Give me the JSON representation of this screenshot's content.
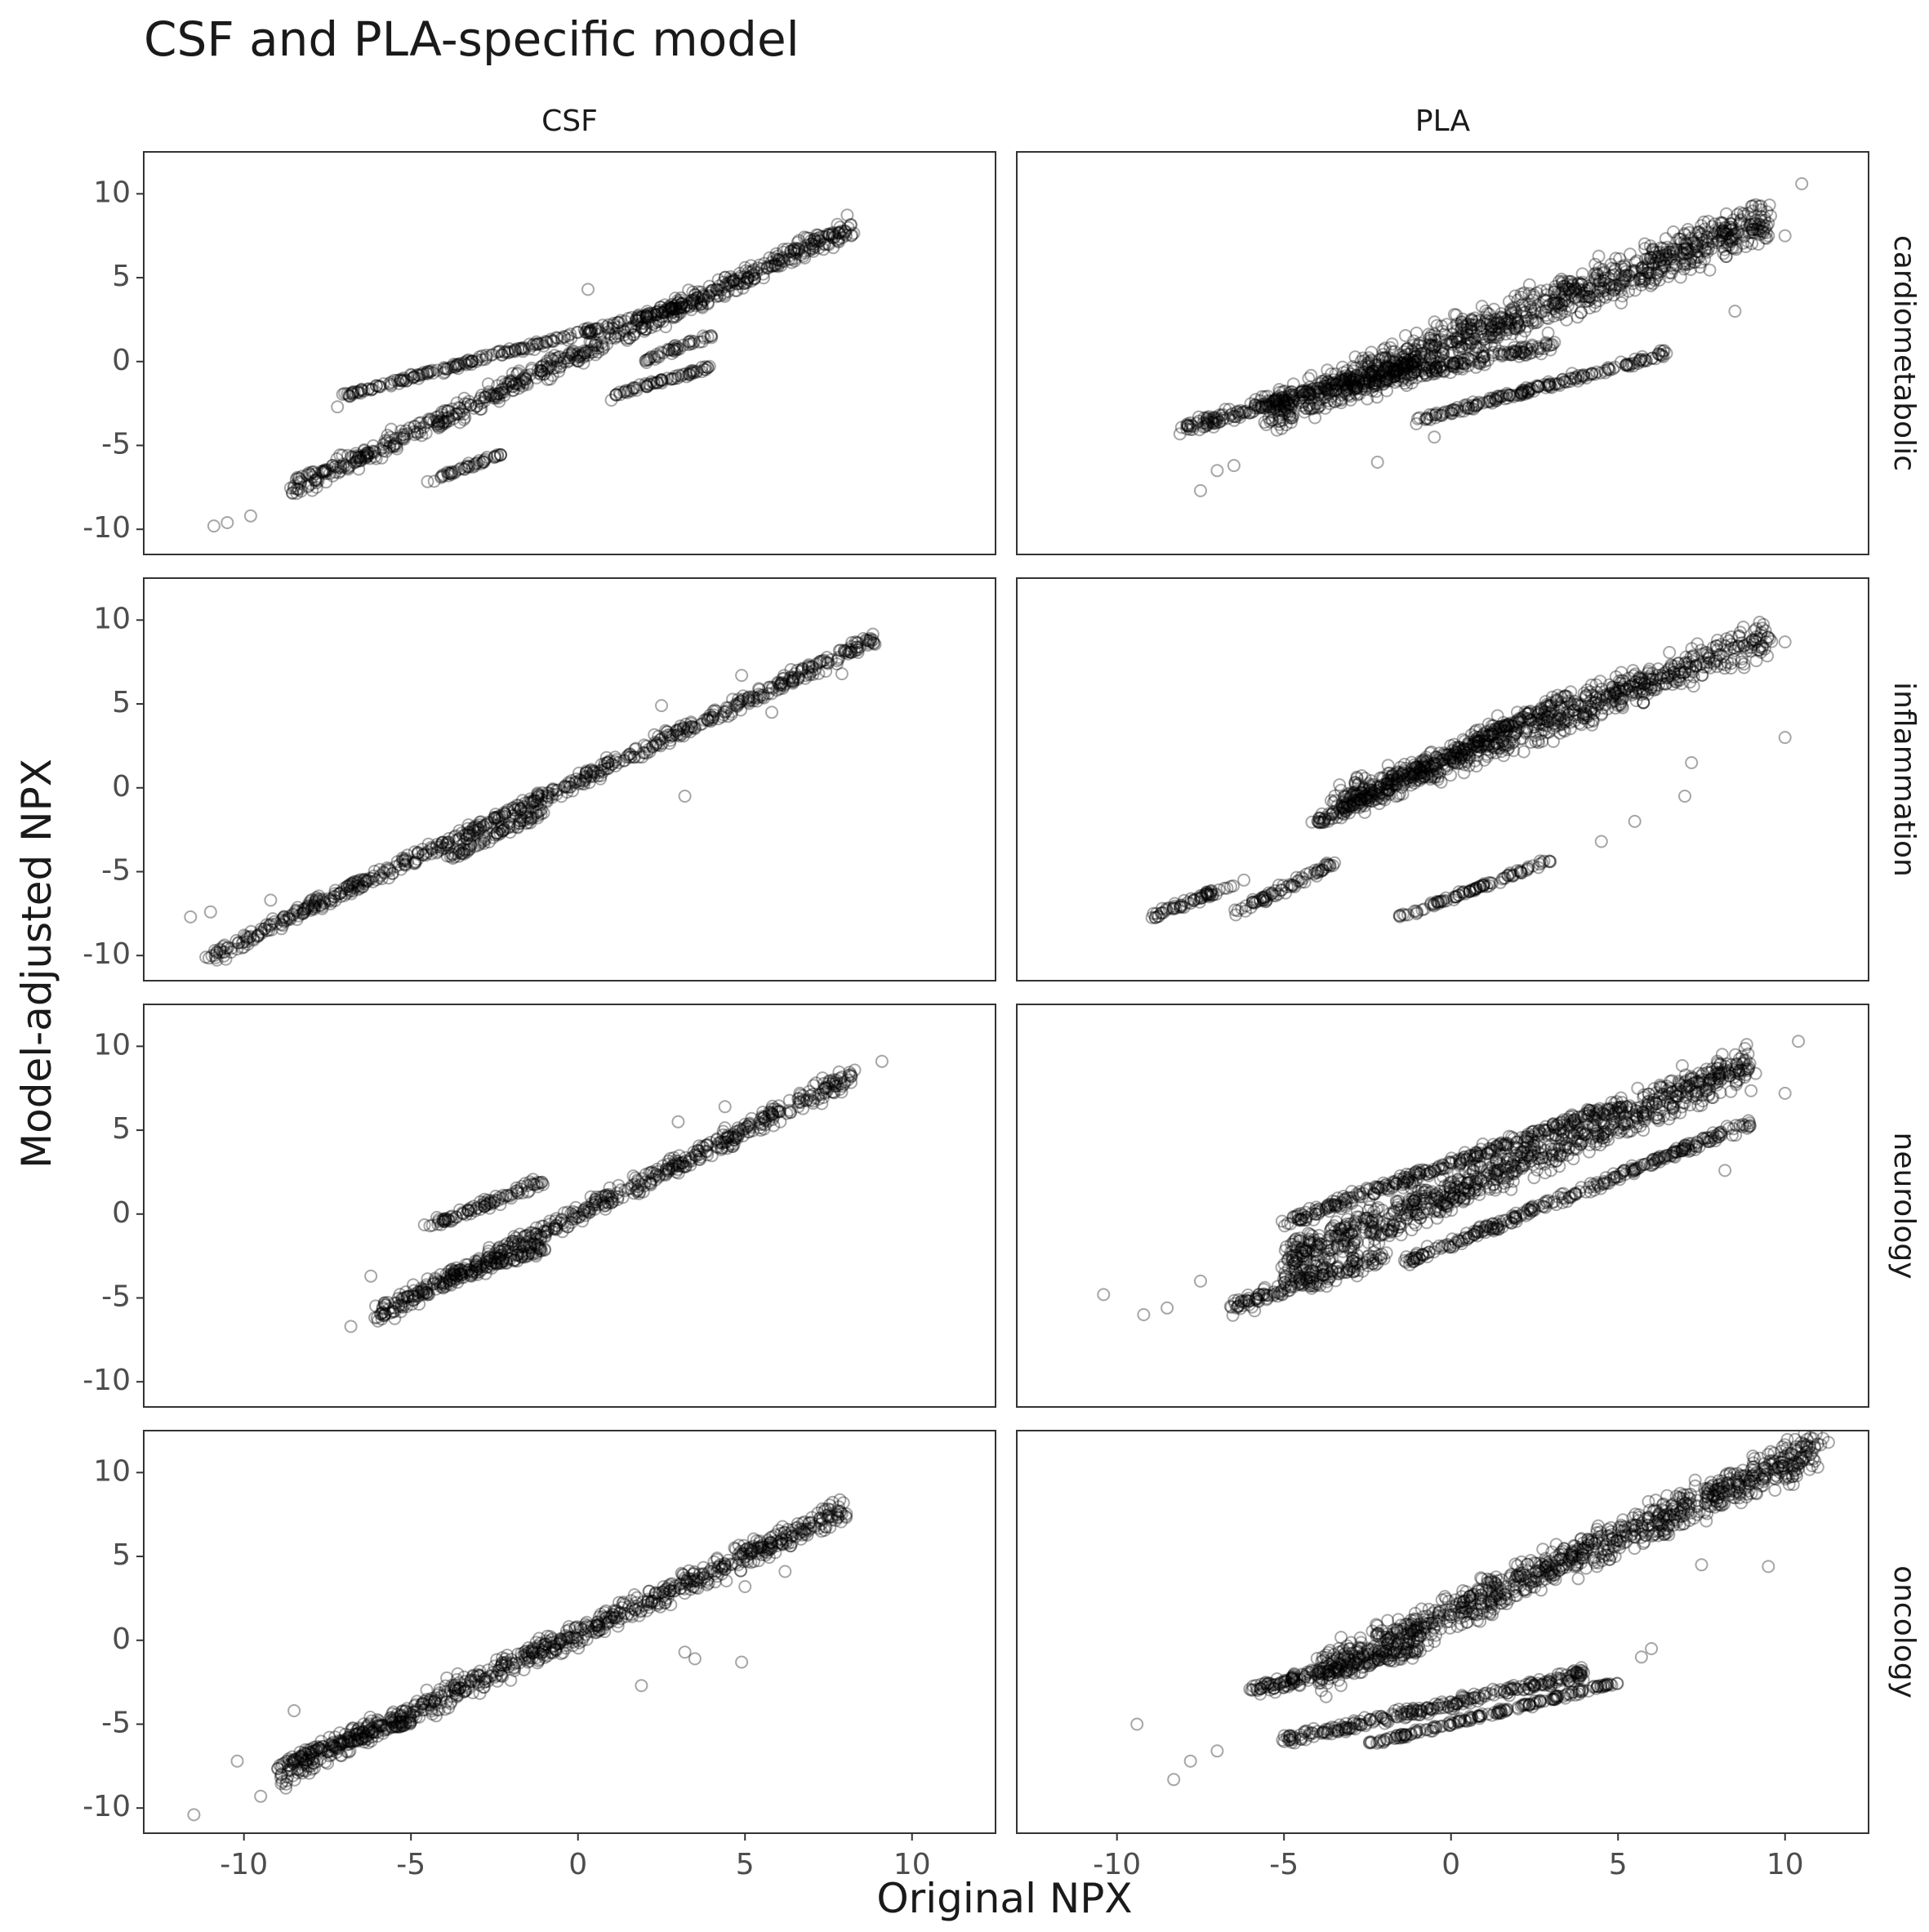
{
  "chart_data": {
    "type": "scatter",
    "title": "CSF and PLA-specific model",
    "xlabel": "Original NPX",
    "ylabel": "Model-adjusted NPX",
    "columns": [
      "CSF",
      "PLA"
    ],
    "rows": [
      "cardiometabolic",
      "inflammation",
      "neurology",
      "oncology"
    ],
    "xlim": [
      -13,
      12.5
    ],
    "ylim": [
      -11.5,
      12.5
    ],
    "xticks": [
      -10,
      -5,
      0,
      5,
      10
    ],
    "yticks": [
      -10,
      -5,
      0,
      5,
      10
    ],
    "xtick_labels": [
      "-10",
      "-5",
      "0",
      "5",
      "10"
    ],
    "ytick_labels": [
      "-10",
      "-5",
      "0",
      "5",
      "10"
    ],
    "grid": false,
    "marker": "open-circle",
    "point_color": "#000000",
    "point_opacity": 0.35,
    "panels": [
      {
        "column": "CSF",
        "row": "cardiometabolic",
        "segments": [
          {
            "x": [
              -8.5,
              8.2
            ],
            "y": [
              -7.5,
              8.0
            ],
            "spread": 0.9
          },
          {
            "x": [
              -7.0,
              3.5
            ],
            "y": [
              -2.0,
              3.5
            ],
            "spread": 0.25
          },
          {
            "x": [
              2.0,
              4.0
            ],
            "y": [
              0.0,
              1.6
            ],
            "spread": 0.2
          },
          {
            "x": [
              1.0,
              4.0
            ],
            "y": [
              -2.0,
              -0.3
            ],
            "spread": 0.2
          },
          {
            "x": [
              -4.5,
              -2.3
            ],
            "y": [
              -7.2,
              -5.5
            ],
            "spread": 0.15
          }
        ],
        "outliers": [
          {
            "x": -10.9,
            "y": -9.8
          },
          {
            "x": -10.5,
            "y": -9.6
          },
          {
            "x": -9.8,
            "y": -9.2
          },
          {
            "x": -7.2,
            "y": -2.7
          },
          {
            "x": 0.3,
            "y": 4.3
          },
          {
            "x": 1.0,
            "y": -2.3
          }
        ]
      },
      {
        "column": "PLA",
        "row": "cardiometabolic",
        "segments": [
          {
            "x": [
              -5.5,
              9.5
            ],
            "y": [
              -3.0,
              8.5
            ],
            "spread": 2.0
          },
          {
            "x": [
              -8.0,
              -1.0
            ],
            "y": [
              -4.0,
              0.0
            ],
            "spread": 0.6
          },
          {
            "x": [
              -1.0,
              6.5
            ],
            "y": [
              -3.5,
              0.5
            ],
            "spread": 0.3
          },
          {
            "x": [
              -3.0,
              3.0
            ],
            "y": [
              -1.5,
              1.0
            ],
            "spread": 0.6
          }
        ],
        "outliers": [
          {
            "x": -7.5,
            "y": -7.7
          },
          {
            "x": -7.0,
            "y": -6.5
          },
          {
            "x": -6.5,
            "y": -6.2
          },
          {
            "x": -2.2,
            "y": -6.0
          },
          {
            "x": -0.5,
            "y": -4.5
          },
          {
            "x": 10.5,
            "y": 10.6
          },
          {
            "x": 10.0,
            "y": 7.5
          },
          {
            "x": 9.2,
            "y": 7.0
          },
          {
            "x": 8.5,
            "y": 3.0
          }
        ]
      },
      {
        "column": "CSF",
        "row": "inflammation",
        "segments": [
          {
            "x": [
              -11.0,
              9.0
            ],
            "y": [
              -10.0,
              9.0
            ],
            "spread": 0.6
          },
          {
            "x": [
              -4.0,
              -1.0
            ],
            "y": [
              -4.3,
              -1.3
            ],
            "spread": 0.4
          }
        ],
        "outliers": [
          {
            "x": -11.6,
            "y": -7.7
          },
          {
            "x": -11.0,
            "y": -7.4
          },
          {
            "x": -10.0,
            "y": -9.5
          },
          {
            "x": -9.2,
            "y": -6.7
          },
          {
            "x": 3.2,
            "y": -0.5
          },
          {
            "x": 2.5,
            "y": 4.9
          },
          {
            "x": 4.9,
            "y": 6.7
          },
          {
            "x": 5.8,
            "y": 4.5
          },
          {
            "x": 7.9,
            "y": 6.8
          }
        ]
      },
      {
        "column": "PLA",
        "row": "inflammation",
        "segments": [
          {
            "x": [
              -3.5,
              9.5
            ],
            "y": [
              -1.0,
              9.0
            ],
            "spread": 1.6
          },
          {
            "x": [
              -9.0,
              -6.5
            ],
            "y": [
              -7.7,
              -5.8
            ],
            "spread": 0.3
          },
          {
            "x": [
              -6.5,
              -3.5
            ],
            "y": [
              -7.5,
              -4.5
            ],
            "spread": 0.3
          },
          {
            "x": [
              -1.5,
              3.0
            ],
            "y": [
              -7.7,
              -4.3
            ],
            "spread": 0.15
          },
          {
            "x": [
              -4.0,
              3.5
            ],
            "y": [
              -2.0,
              5.5
            ],
            "spread": 0.5
          }
        ],
        "outliers": [
          {
            "x": -6.2,
            "y": -5.5
          },
          {
            "x": -3.8,
            "y": -2.0
          },
          {
            "x": 4.5,
            "y": -3.2
          },
          {
            "x": 5.5,
            "y": -2.0
          },
          {
            "x": 10.0,
            "y": 3.0
          },
          {
            "x": 10.0,
            "y": 8.7
          },
          {
            "x": 7.0,
            "y": -0.5
          },
          {
            "x": 7.2,
            "y": 1.5
          }
        ]
      },
      {
        "column": "CSF",
        "row": "neurology",
        "segments": [
          {
            "x": [
              -6.0,
              8.2
            ],
            "y": [
              -6.0,
              8.2
            ],
            "spread": 0.9
          },
          {
            "x": [
              -4.5,
              -1.0
            ],
            "y": [
              -0.8,
              2.0
            ],
            "spread": 0.4
          },
          {
            "x": [
              -4.0,
              -1.0
            ],
            "y": [
              -4.0,
              -2.0
            ],
            "spread": 0.5
          }
        ],
        "outliers": [
          {
            "x": -6.8,
            "y": -6.7
          },
          {
            "x": 9.1,
            "y": 9.1
          },
          {
            "x": 4.4,
            "y": 6.4
          },
          {
            "x": 3.0,
            "y": 5.5
          },
          {
            "x": -6.2,
            "y": -3.7
          }
        ]
      },
      {
        "column": "PLA",
        "row": "neurology",
        "segments": [
          {
            "x": [
              -5.0,
              9.0
            ],
            "y": [
              -3.0,
              9.0
            ],
            "spread": 1.8
          },
          {
            "x": [
              -5.0,
              5.0
            ],
            "y": [
              -0.5,
              6.5
            ],
            "spread": 0.5
          },
          {
            "x": [
              -1.5,
              9.0
            ],
            "y": [
              -3.0,
              5.5
            ],
            "spread": 0.4
          },
          {
            "x": [
              -6.5,
              -2.0
            ],
            "y": [
              -5.5,
              -2.5
            ],
            "spread": 0.8
          }
        ],
        "outliers": [
          {
            "x": -10.4,
            "y": -4.8
          },
          {
            "x": -9.2,
            "y": -6.0
          },
          {
            "x": -8.5,
            "y": -5.6
          },
          {
            "x": -7.5,
            "y": -4.0
          },
          {
            "x": 10.4,
            "y": 10.3
          },
          {
            "x": 10.0,
            "y": 7.2
          },
          {
            "x": 8.2,
            "y": 2.6
          },
          {
            "x": 6.5,
            "y": 3.5
          }
        ]
      },
      {
        "column": "CSF",
        "row": "oncology",
        "segments": [
          {
            "x": [
              -9.0,
              8.0
            ],
            "y": [
              -8.0,
              7.8
            ],
            "spread": 1.1
          },
          {
            "x": [
              -8.5,
              -5.0
            ],
            "y": [
              -7.0,
              -4.8
            ],
            "spread": 0.4
          }
        ],
        "outliers": [
          {
            "x": -11.5,
            "y": -10.4
          },
          {
            "x": -10.2,
            "y": -7.2
          },
          {
            "x": -9.5,
            "y": -9.3
          },
          {
            "x": -8.5,
            "y": -4.2
          },
          {
            "x": 1.9,
            "y": -2.7
          },
          {
            "x": 3.2,
            "y": -0.7
          },
          {
            "x": 3.5,
            "y": -1.1
          },
          {
            "x": 4.9,
            "y": -1.3
          },
          {
            "x": 5.0,
            "y": 3.2
          },
          {
            "x": 6.2,
            "y": 4.1
          }
        ]
      },
      {
        "column": "PLA",
        "row": "oncology",
        "segments": [
          {
            "x": [
              -4.0,
              11.0
            ],
            "y": [
              -2.0,
              11.5
            ],
            "spread": 1.8
          },
          {
            "x": [
              -5.0,
              4.0
            ],
            "y": [
              -6.0,
              -2.0
            ],
            "spread": 0.5
          },
          {
            "x": [
              -2.5,
              5.0
            ],
            "y": [
              -6.2,
              -2.5
            ],
            "spread": 0.2
          },
          {
            "x": [
              -6.0,
              -1.0
            ],
            "y": [
              -3.0,
              -0.5
            ],
            "spread": 0.6
          }
        ],
        "outliers": [
          {
            "x": -9.4,
            "y": -5.0
          },
          {
            "x": -8.3,
            "y": -8.3
          },
          {
            "x": -7.8,
            "y": -7.2
          },
          {
            "x": -7.0,
            "y": -6.6
          },
          {
            "x": 9.5,
            "y": 4.4
          },
          {
            "x": 7.5,
            "y": 4.5
          },
          {
            "x": 5.7,
            "y": -1.0
          },
          {
            "x": 6.0,
            "y": -0.5
          },
          {
            "x": 11.3,
            "y": 11.8
          }
        ]
      }
    ]
  }
}
